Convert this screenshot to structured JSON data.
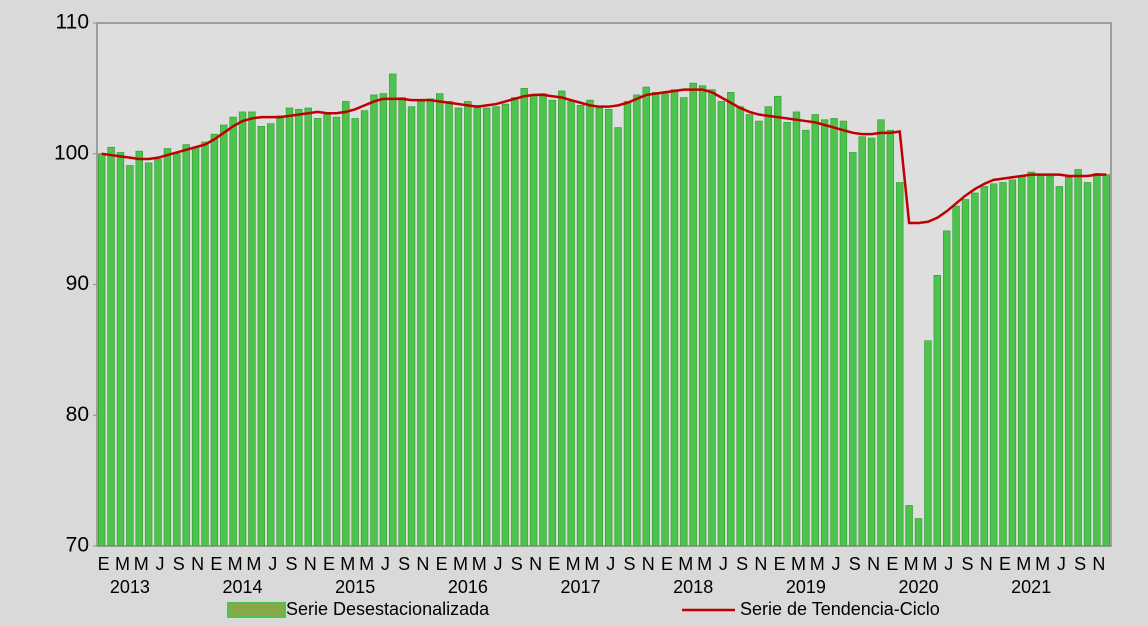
{
  "chart_data": {
    "type": "bar",
    "categories": [
      "E",
      null,
      "M",
      null,
      "M",
      null,
      "J",
      null,
      "S",
      null,
      "N",
      null,
      "E",
      null,
      "M",
      null,
      "M",
      null,
      "J",
      null,
      "S",
      null,
      "N",
      null,
      "E",
      null,
      "M",
      null,
      "M",
      null,
      "J",
      null,
      "S",
      null,
      "N",
      null,
      "E",
      null,
      "M",
      null,
      "M",
      null,
      "J",
      null,
      "S",
      null,
      "N",
      null,
      "E",
      null,
      "M",
      null,
      "M",
      null,
      "J",
      null,
      "S",
      null,
      "N",
      null,
      "E",
      null,
      "M",
      null,
      "M",
      null,
      "J",
      null,
      "S",
      null,
      "N",
      null,
      "E",
      null,
      "M",
      null,
      "M",
      null,
      "J",
      null,
      "S",
      null,
      "N",
      null,
      "E",
      null,
      "M",
      null,
      "M",
      null,
      "J",
      null,
      "S",
      null,
      "N",
      null,
      "E",
      null,
      "M",
      null,
      "M",
      null,
      "J",
      null,
      "S",
      null,
      "N",
      null
    ],
    "year_labels": [
      "2013",
      "2014",
      "2015",
      "2016",
      "2017",
      "2018",
      "2019",
      "2020",
      "2021"
    ],
    "series": [
      {
        "name": "Serie Desestacionalizada",
        "type": "bar",
        "color": "#4cc34c",
        "edge": "#2f9a2f",
        "values": [
          100.0,
          100.5,
          100.1,
          99.1,
          100.2,
          99.3,
          99.6,
          100.4,
          100.0,
          100.7,
          100.5,
          100.9,
          101.5,
          102.2,
          102.8,
          103.2,
          103.2,
          102.1,
          102.3,
          102.9,
          103.5,
          103.4,
          103.5,
          102.7,
          103.0,
          102.8,
          104.0,
          102.7,
          103.3,
          104.5,
          104.6,
          106.1,
          104.3,
          103.6,
          104.0,
          104.2,
          104.6,
          104.0,
          103.5,
          104.0,
          103.7,
          103.5,
          103.6,
          103.8,
          104.3,
          105.0,
          104.5,
          104.6,
          104.1,
          104.8,
          104.0,
          103.7,
          104.1,
          103.5,
          103.4,
          102.0,
          104.0,
          104.5,
          105.1,
          104.7,
          104.6,
          104.9,
          104.3,
          105.4,
          105.2,
          104.9,
          104.0,
          104.7,
          103.6,
          103.0,
          102.5,
          103.6,
          104.4,
          102.4,
          103.2,
          101.8,
          103.0,
          102.6,
          102.7,
          102.5,
          100.1,
          101.3,
          101.2,
          102.6,
          101.8,
          97.8,
          73.1,
          72.1,
          85.7,
          90.7,
          94.1,
          96.0,
          96.5,
          97.0,
          97.5,
          97.7,
          97.8,
          98.0,
          98.3,
          98.6,
          98.4,
          98.3,
          97.5,
          98.2,
          98.8,
          97.8,
          98.5,
          98.4
        ]
      },
      {
        "name": "Serie de Tendencia-Ciclo",
        "type": "line",
        "color": "#c00000",
        "values": [
          100.0,
          99.9,
          99.8,
          99.7,
          99.6,
          99.6,
          99.7,
          99.9,
          100.1,
          100.3,
          100.5,
          100.7,
          101.1,
          101.6,
          102.1,
          102.5,
          102.7,
          102.8,
          102.8,
          102.8,
          102.9,
          103.0,
          103.1,
          103.2,
          103.1,
          103.1,
          103.2,
          103.4,
          103.7,
          104.0,
          104.2,
          104.2,
          104.2,
          104.1,
          104.1,
          104.1,
          104.0,
          103.9,
          103.8,
          103.7,
          103.6,
          103.7,
          103.8,
          104.0,
          104.2,
          104.4,
          104.5,
          104.5,
          104.4,
          104.3,
          104.1,
          103.9,
          103.7,
          103.6,
          103.6,
          103.7,
          103.9,
          104.2,
          104.5,
          104.6,
          104.7,
          104.8,
          104.9,
          104.9,
          104.9,
          104.7,
          104.3,
          103.9,
          103.5,
          103.2,
          103.0,
          102.9,
          102.8,
          102.7,
          102.6,
          102.5,
          102.4,
          102.2,
          102.0,
          101.8,
          101.6,
          101.5,
          101.5,
          101.6,
          101.6,
          101.7,
          94.7,
          94.7,
          94.8,
          95.1,
          95.6,
          96.2,
          96.8,
          97.3,
          97.7,
          98.0,
          98.1,
          98.2,
          98.3,
          98.4,
          98.4,
          98.4,
          98.4,
          98.3,
          98.3,
          98.3,
          98.4,
          98.4
        ]
      }
    ],
    "ylim": [
      70,
      110
    ],
    "yticks": [
      70,
      80,
      90,
      100,
      110
    ],
    "grid": false
  }
}
